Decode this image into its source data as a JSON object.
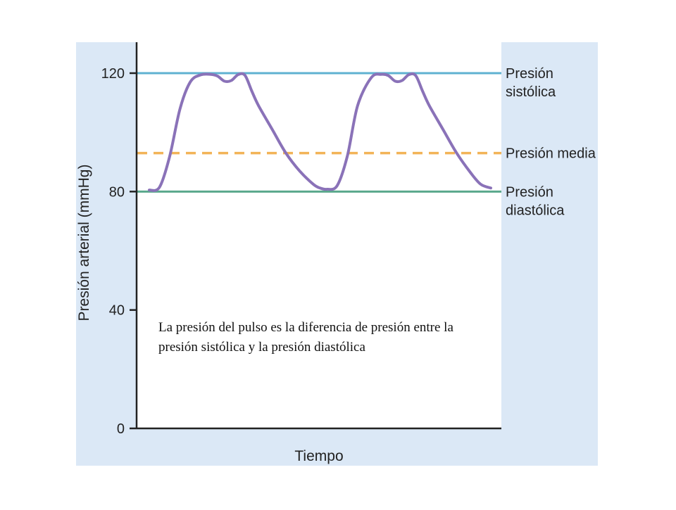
{
  "caption": {
    "line1": "La presión del pulso es la diferencia de presión entre la",
    "line2": "presión sistólica y la presión diastólica"
  },
  "chart_data": {
    "type": "line",
    "title": "",
    "xlabel": "Tiempo",
    "ylabel": "Presión arterial (mmHg)",
    "ylim": [
      0,
      120
    ],
    "yticks": [
      "0",
      "40",
      "80",
      "120"
    ],
    "grid": false,
    "colors": {
      "background": "#dbe8f6",
      "plot_background": "#ffffff",
      "waveform": "#8a72b8",
      "systolic_line": "#5fb2d1",
      "mean_line": "#f2b457",
      "diastolic_line": "#5aa88c",
      "axis": "#222222"
    },
    "reference_lines": [
      {
        "key": "systolic",
        "label_lines": [
          "Presión",
          "sistólica"
        ],
        "value": 120,
        "style": "solid"
      },
      {
        "key": "mean",
        "label_lines": [
          "Presión media"
        ],
        "value": 93,
        "style": "dashed"
      },
      {
        "key": "diastolic",
        "label_lines": [
          "Presión",
          "diastólica"
        ],
        "value": 80,
        "style": "solid"
      }
    ],
    "series": [
      {
        "x": [
          0,
          0.03,
          0.06,
          0.09,
          0.12,
          0.15,
          0.18,
          0.2,
          0.22,
          0.24,
          0.26,
          0.28,
          0.3,
          0.32,
          0.36,
          0.4,
          0.44,
          0.48,
          0.5,
          0.52,
          0.55,
          0.58,
          0.61,
          0.65,
          0.68,
          0.7,
          0.72,
          0.74,
          0.76,
          0.78,
          0.8,
          0.82,
          0.86,
          0.9,
          0.94,
          0.97,
          1.0
        ],
        "y": [
          80.5,
          81.5,
          92,
          108,
          117,
          119.4,
          119.6,
          119,
          117.3,
          117.5,
          119.5,
          119.3,
          114,
          109,
          101,
          93,
          87,
          82.5,
          81.2,
          80.8,
          82,
          92,
          109,
          118.5,
          119.6,
          119.2,
          117.3,
          117.5,
          119.5,
          119.2,
          114,
          109,
          101,
          93,
          86.5,
          82.5,
          81.2
        ]
      }
    ]
  }
}
